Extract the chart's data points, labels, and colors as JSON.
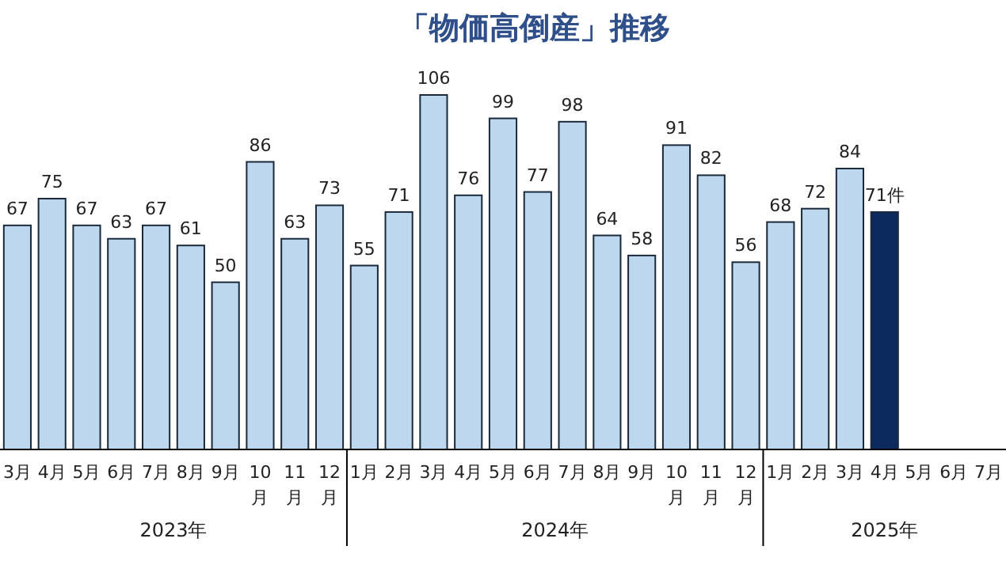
{
  "chart_data": {
    "type": "bar",
    "title": "「物価高倒産」推移",
    "categories": [
      "3月",
      "4月",
      "5月",
      "6月",
      "7月",
      "8月",
      "9月",
      "10月",
      "11月",
      "12月",
      "1月",
      "2月",
      "3月",
      "4月",
      "5月",
      "6月",
      "7月",
      "8月",
      "9月",
      "10月",
      "11月",
      "12月",
      "1月",
      "2月",
      "3月",
      "4月",
      "5月",
      "6月",
      "7月"
    ],
    "values": [
      67,
      75,
      67,
      63,
      67,
      61,
      50,
      86,
      63,
      73,
      55,
      71,
      106,
      76,
      99,
      77,
      98,
      64,
      58,
      91,
      82,
      56,
      68,
      72,
      84,
      71,
      null,
      null,
      null
    ],
    "value_labels": [
      "67",
      "75",
      "67",
      "63",
      "67",
      "61",
      "50",
      "86",
      "63",
      "73",
      "55",
      "71",
      "106",
      "76",
      "99",
      "77",
      "98",
      "64",
      "58",
      "91",
      "82",
      "56",
      "68",
      "72",
      "84",
      "71件",
      null,
      null,
      null
    ],
    "colors": [
      "#bdd7ee",
      "#bdd7ee",
      "#bdd7ee",
      "#bdd7ee",
      "#bdd7ee",
      "#bdd7ee",
      "#bdd7ee",
      "#bdd7ee",
      "#bdd7ee",
      "#bdd7ee",
      "#bdd7ee",
      "#bdd7ee",
      "#bdd7ee",
      "#bdd7ee",
      "#bdd7ee",
      "#bdd7ee",
      "#bdd7ee",
      "#bdd7ee",
      "#bdd7ee",
      "#bdd7ee",
      "#bdd7ee",
      "#bdd7ee",
      "#bdd7ee",
      "#bdd7ee",
      "#bdd7ee",
      "#0d2a5e",
      null,
      null,
      null
    ],
    "annotations": [
      "2023年",
      "2024年",
      "2025年"
    ]
  }
}
